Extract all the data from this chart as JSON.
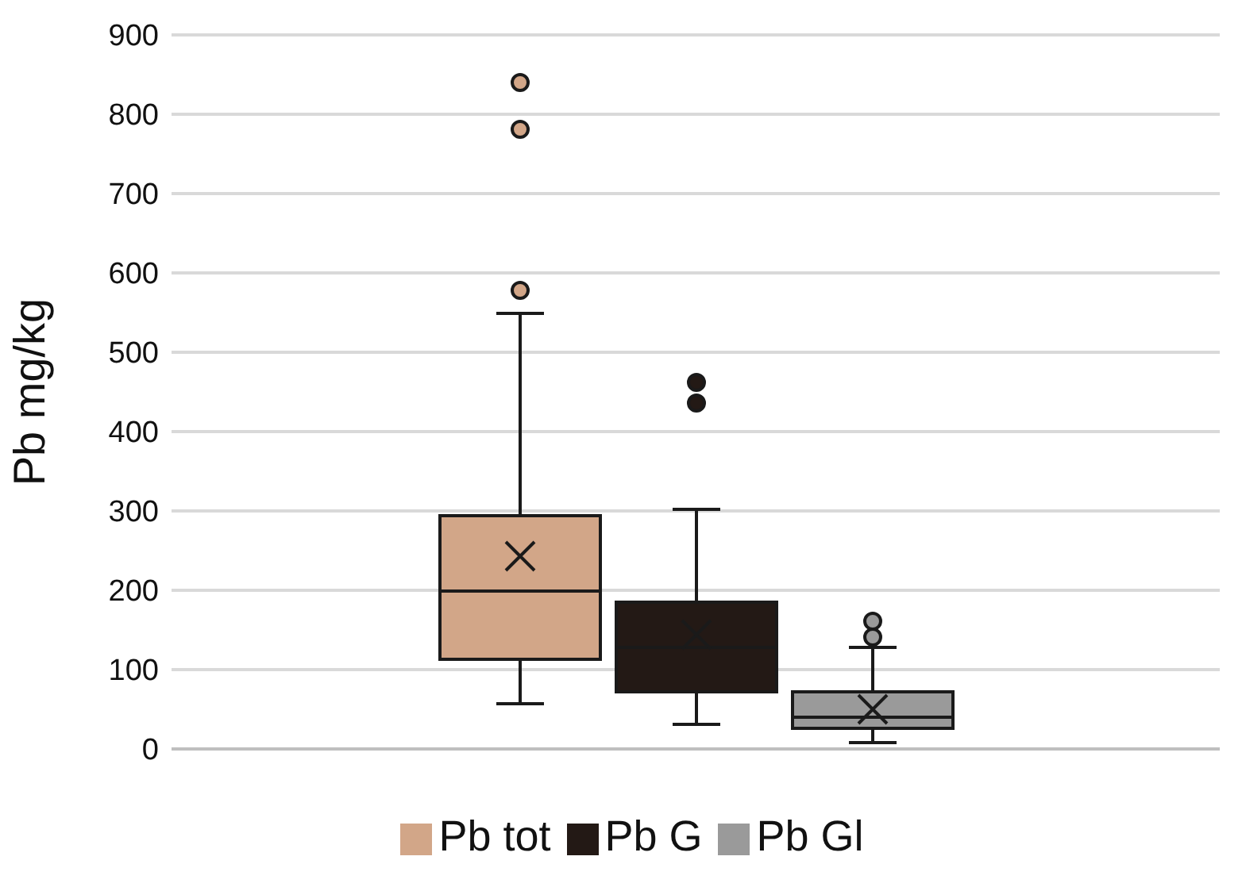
{
  "chart_data": {
    "type": "box",
    "ylabel": "Pb mg/kg",
    "categories": [
      null
    ],
    "ylim": [
      0,
      900
    ],
    "yticks": [
      0,
      100,
      200,
      300,
      400,
      500,
      600,
      700,
      800,
      900
    ],
    "grid": "y",
    "legend": "bottom",
    "series": [
      {
        "name": "Pb tot",
        "color": "#d2a688",
        "boxes": [
          {
            "low": 57,
            "q1": 113,
            "median": 199,
            "q3": 294,
            "high": 549,
            "mean": 243,
            "outliers": [
              578,
              781,
              840
            ]
          }
        ]
      },
      {
        "name": "Pb G",
        "color": "#231915",
        "boxes": [
          {
            "low": 31,
            "q1": 72,
            "median": 128,
            "q3": 185,
            "high": 302,
            "mean": 144,
            "outliers": [
              436,
              462
            ]
          }
        ]
      },
      {
        "name": "Pb Gl",
        "color": "#9a9a9a",
        "boxes": [
          {
            "low": 8,
            "q1": 26,
            "median": 40,
            "q3": 72,
            "high": 128,
            "mean": 50,
            "outliers": [
              141,
              161
            ]
          }
        ]
      }
    ]
  }
}
